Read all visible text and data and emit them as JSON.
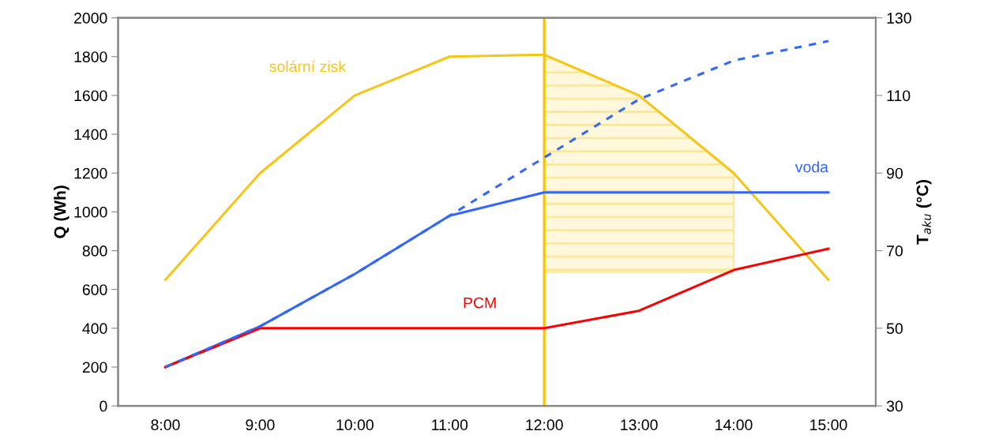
{
  "chart_data": {
    "type": "line",
    "categories": [
      "8:00",
      "9:00",
      "10:00",
      "11:00",
      "12:00",
      "13:00",
      "14:00",
      "15:00"
    ],
    "ylabel": "Q (Wh)",
    "y2label": "T$_{aku}$ (°C)",
    "ylim": [
      0,
      2000
    ],
    "yticks": [
      0,
      200,
      400,
      600,
      800,
      1000,
      1200,
      1400,
      1600,
      1800,
      2000
    ],
    "y2lim": [
      30,
      130
    ],
    "y2ticks": [
      30,
      50,
      70,
      90,
      110,
      130
    ],
    "series": [
      {
        "name": "solární zisk",
        "color": "#f5c518",
        "values": [
          650,
          1200,
          1600,
          1800,
          1810,
          1600,
          1200,
          650
        ],
        "lower": [
          null,
          null,
          null,
          null,
          690,
          690,
          690,
          null
        ],
        "upper": [
          null,
          null,
          null,
          null,
          1810,
          1600,
          1200,
          null
        ]
      },
      {
        "color": "#3366ff",
        "axis": "y2",
        "line_style": "dashed",
        "values": [
          40,
          50.5,
          64,
          79,
          94,
          109,
          119,
          124
        ]
      },
      {
        "name": "voda",
        "color": "#3366ff",
        "axis": "y2",
        "values": [
          40,
          50.5,
          64,
          79,
          85,
          85,
          85,
          85
        ]
      },
      {
        "name": "PCM",
        "color": "#ff0000",
        "axis": "y2",
        "values": [
          40,
          50,
          50,
          50,
          50,
          54.5,
          65,
          70.5
        ]
      }
    ],
    "ref_lines": [
      {
        "axis": "x",
        "value": "12:00",
        "color": "#f5c518"
      }
    ],
    "grid": false,
    "legend": false,
    "marker": "none"
  }
}
